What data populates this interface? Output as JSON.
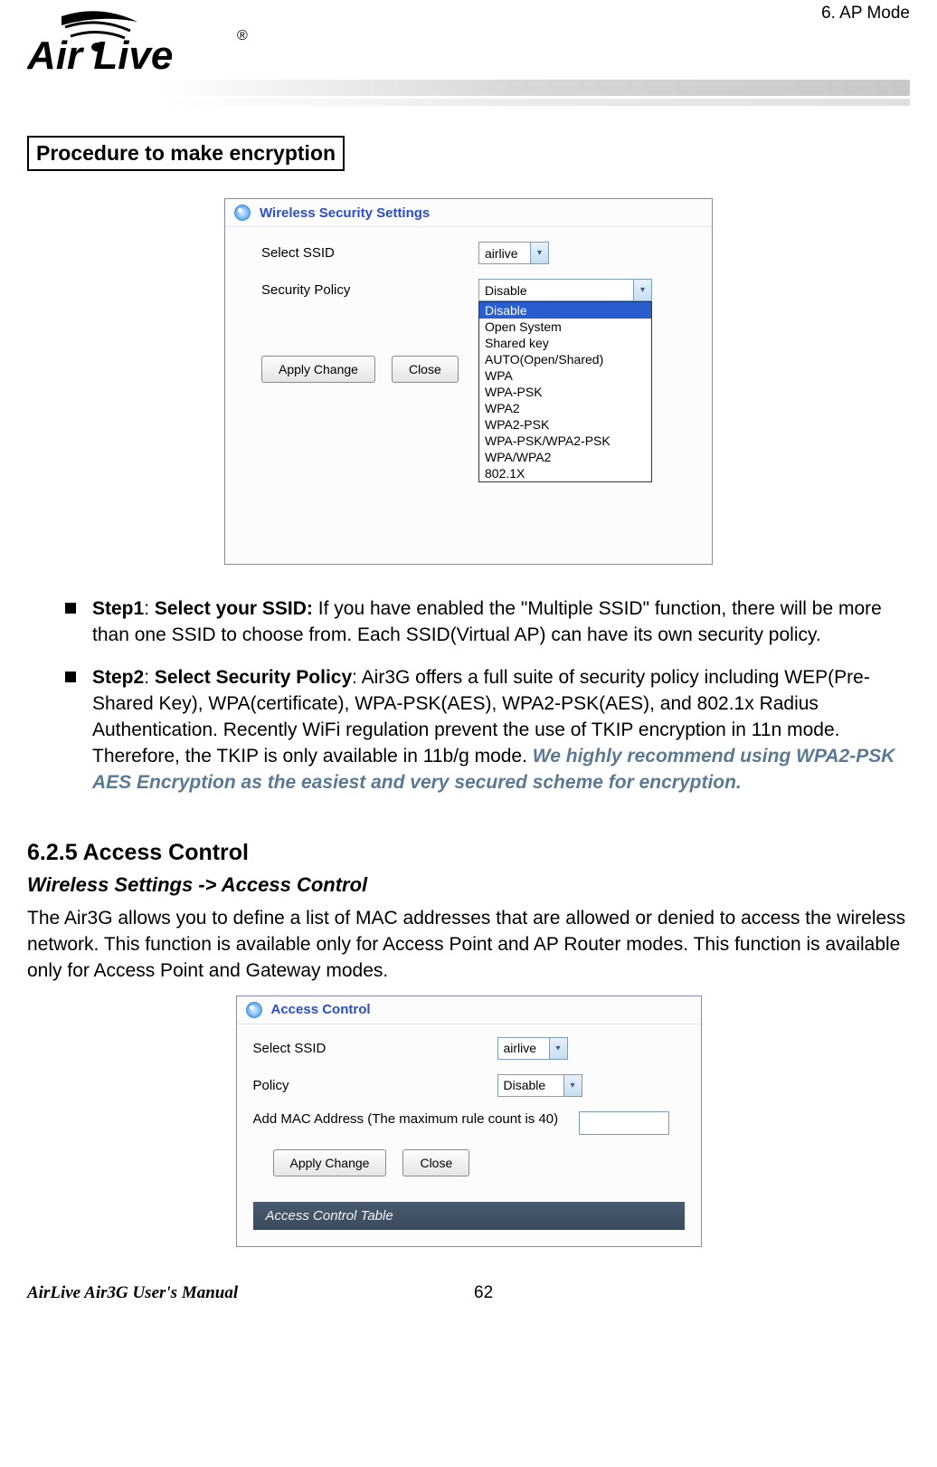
{
  "header": {
    "chapter_label": "6.  AP Mode",
    "logo_text_top": "Air Live",
    "logo_text_reg": "®"
  },
  "section_boxed_title": "Procedure to make encryption",
  "panel1": {
    "title": "Wireless Security Settings",
    "rows": {
      "select_ssid_label": "Select SSID",
      "select_ssid_value": "airlive",
      "security_policy_label": "Security Policy",
      "security_policy_value": "Disable"
    },
    "dropdown_options": [
      "Disable",
      "Open System",
      "Shared key",
      "AUTO(Open/Shared)",
      "WPA",
      "WPA-PSK",
      "WPA2",
      "WPA2-PSK",
      "WPA-PSK/WPA2-PSK",
      "WPA/WPA2",
      "802.1X"
    ],
    "buttons": {
      "apply": "Apply Change",
      "close": "Close"
    }
  },
  "bullets": {
    "step1_lead": "Step1",
    "step1_bold": "Select your SSID:",
    "step1_rest": "  If you have enabled the \"Multiple SSID\" function, there will be more than one SSID to choose from.  Each SSID(Virtual AP) can have its own security policy.",
    "step2_lead": "Step2",
    "step2_bold": "Select Security Policy",
    "step2_rest": ":  Air3G offers a full suite of security policy including WEP(Pre-Shared Key), WPA(certificate), WPA-PSK(AES), WPA2-PSK(AES), and 802.1x Radius Authentication.  Recently WiFi regulation prevent the use of TKIP encryption in 11n mode.  Therefore, the TKIP is only available in 11b/g mode.  ",
    "step2_recommend": "We highly recommend using WPA2-PSK AES Encryption as the easiest and very secured scheme for encryption."
  },
  "section625": {
    "title": "6.2.5 Access Control",
    "subtitle": "Wireless Settings -> Access Control",
    "para": "The Air3G allows you to define a list of MAC addresses that are allowed or denied to access the wireless network.  This function is available only for Access Point and AP Router modes. This function is available only for Access Point and Gateway modes."
  },
  "panel2": {
    "title": "Access Control",
    "rows": {
      "select_ssid_label": "Select SSID",
      "select_ssid_value": "airlive",
      "policy_label": "Policy",
      "policy_value": "Disable",
      "mac_label": "Add MAC Address (The maximum rule count is 40)"
    },
    "buttons": {
      "apply": "Apply Change",
      "close": "Close"
    },
    "table_title": "Access Control Table"
  },
  "footer": {
    "left": "AirLive Air3G User's Manual",
    "page": "62"
  },
  "colors": {
    "link_blue": "#2a4fc8",
    "recommend_text": "#5a7a94"
  }
}
